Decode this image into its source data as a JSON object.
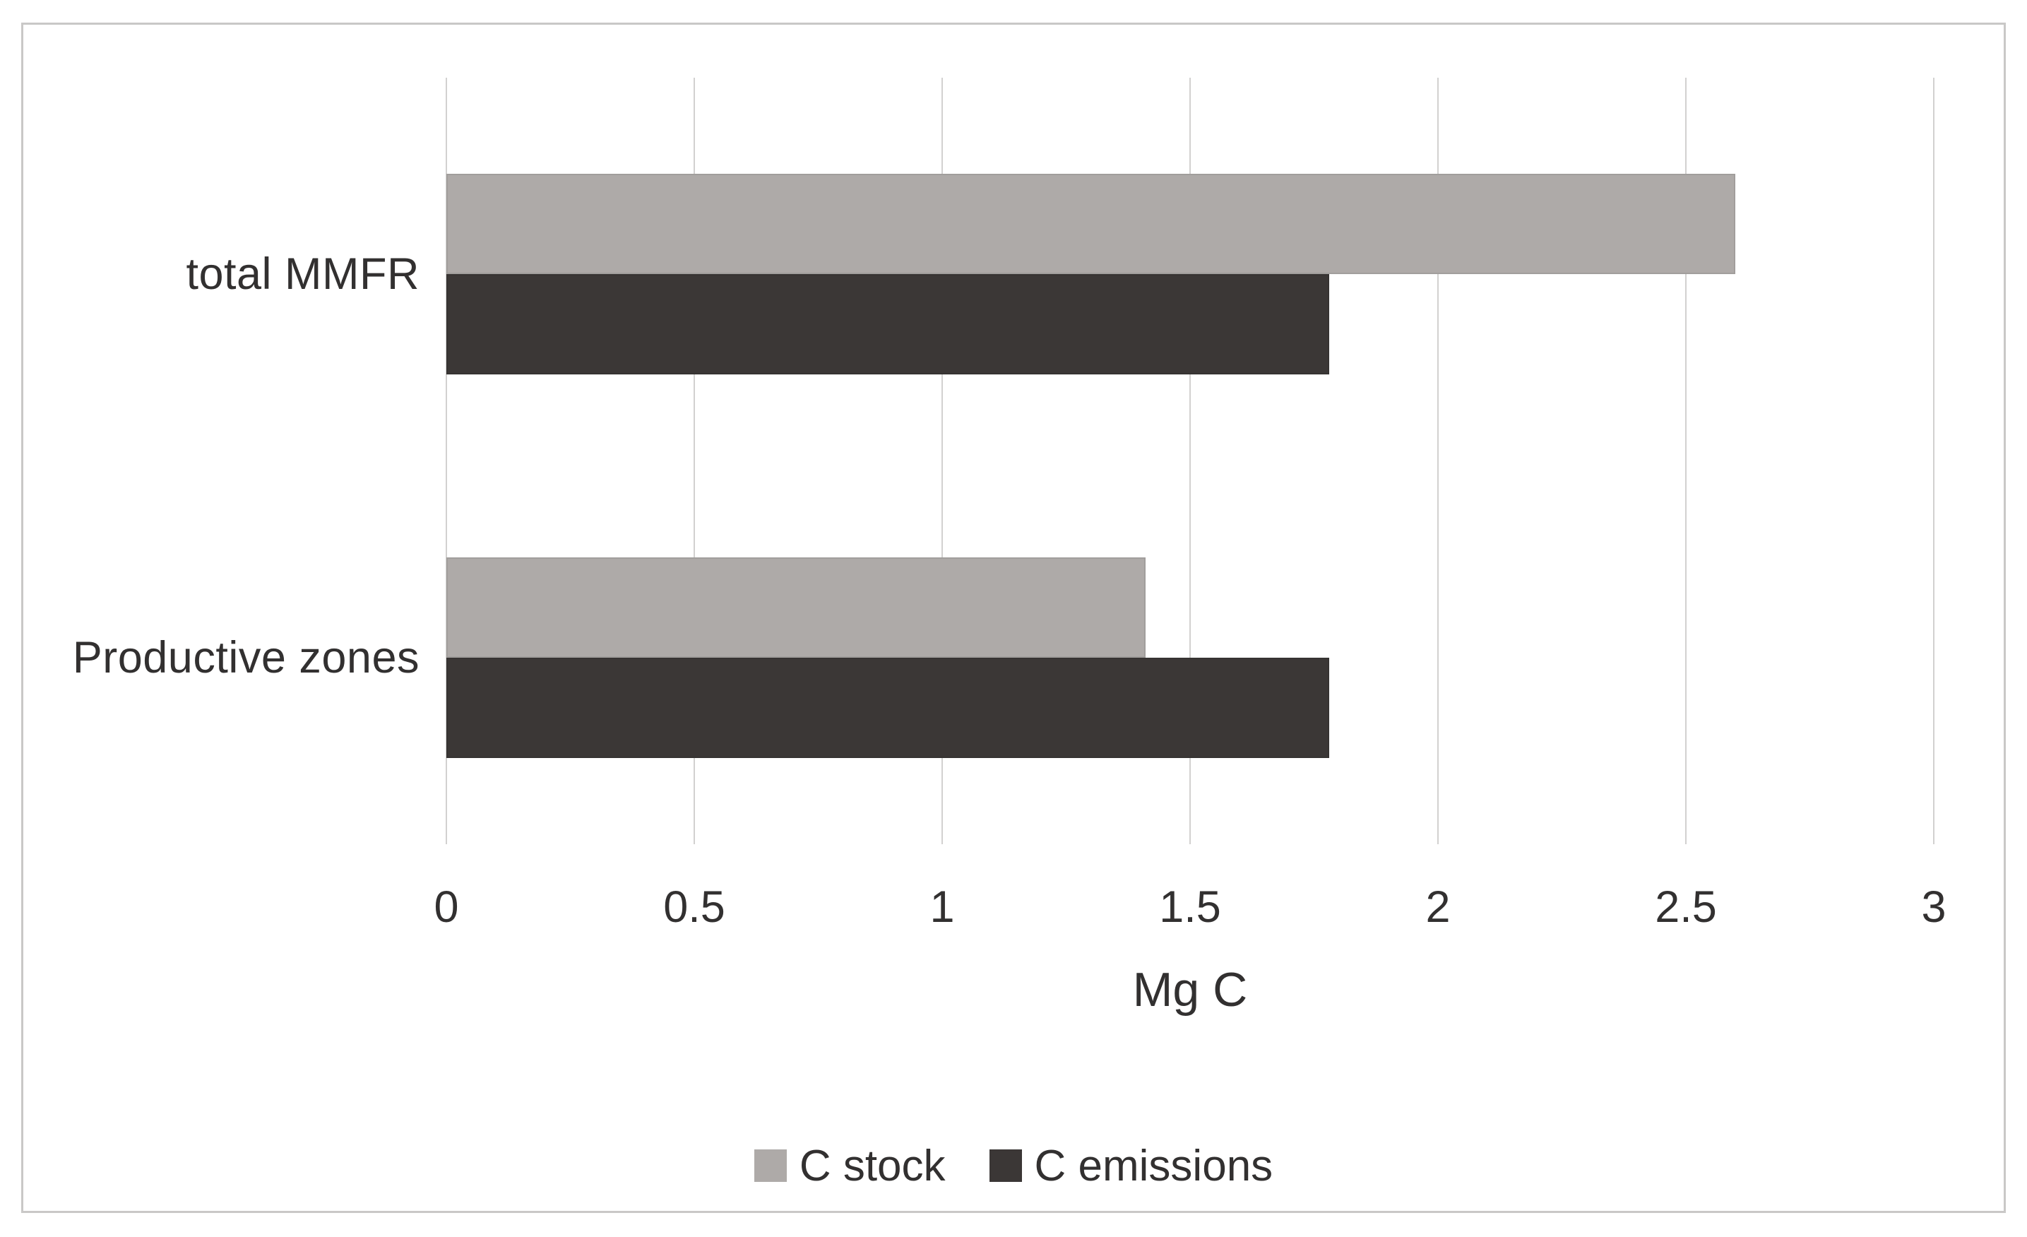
{
  "chart_data": {
    "type": "bar",
    "orientation": "horizontal",
    "title": "",
    "categories": [
      "total MMFR",
      "Productive zones"
    ],
    "series": [
      {
        "name": "C stock",
        "color": "#aeaaa8",
        "values": [
          2.6,
          1.41
        ]
      },
      {
        "name": "C emissions",
        "color": "#3b3736",
        "values": [
          1.78,
          1.78
        ]
      }
    ],
    "xlabel": "Mg C",
    "x_ticks": [
      0,
      0.5,
      1,
      1.5,
      2,
      2.5,
      3
    ],
    "x_tick_labels": [
      "0",
      "0.5",
      "1",
      "1.5",
      "2",
      "2.5",
      "3"
    ],
    "xlim": [
      0,
      3
    ],
    "grid": "vertical-major-gridlines",
    "legend_position": "bottom"
  },
  "colors": {
    "background": "#ffffff",
    "text": "#323030",
    "gridline": "#d2d1d0",
    "frame_border": "#c9c8c7",
    "bar_gray": "#aeaaa8",
    "bar_dark": "#3b3736"
  }
}
